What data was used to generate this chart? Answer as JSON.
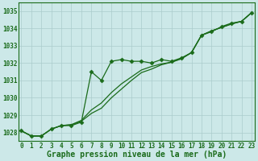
{
  "title": "Graphe pression niveau de la mer (hPa)",
  "background_color": "#cce8e8",
  "grid_color": "#aacccc",
  "line_color": "#1a6b1a",
  "x_ticks": [
    0,
    1,
    2,
    3,
    4,
    5,
    6,
    7,
    8,
    9,
    10,
    11,
    12,
    13,
    14,
    15,
    16,
    17,
    18,
    19,
    20,
    21,
    22,
    23
  ],
  "ylim": [
    1027.5,
    1035.5
  ],
  "yticks": [
    1028,
    1029,
    1030,
    1031,
    1032,
    1033,
    1034,
    1035
  ],
  "series": [
    {
      "y": [
        1028.1,
        1027.8,
        1027.8,
        1028.2,
        1028.4,
        1028.4,
        1028.6,
        1031.5,
        1031.0,
        1032.1,
        1032.2,
        1032.1,
        1032.1,
        1032.0,
        1032.2,
        1032.1,
        1032.3,
        1032.6,
        1033.6,
        1033.8,
        1034.1,
        1034.3,
        1034.4,
        1034.9
      ],
      "marker": "D",
      "markersize": 2.5,
      "linewidth": 0.9,
      "linestyle": "-"
    },
    {
      "y": [
        1028.1,
        1027.8,
        1027.8,
        1028.2,
        1028.4,
        1028.45,
        1028.7,
        1029.3,
        1029.7,
        1030.3,
        1030.8,
        1031.2,
        1031.6,
        1031.8,
        1031.95,
        1032.05,
        1032.25,
        1032.6,
        1033.6,
        1033.85,
        1034.05,
        1034.25,
        1034.4,
        1034.9
      ],
      "marker": null,
      "markersize": 0,
      "linewidth": 0.9,
      "linestyle": "-"
    },
    {
      "y": [
        1028.1,
        1027.8,
        1027.8,
        1028.2,
        1028.4,
        1028.45,
        1028.65,
        1029.1,
        1029.4,
        1030.0,
        1030.5,
        1031.0,
        1031.45,
        1031.65,
        1031.9,
        1032.05,
        1032.25,
        1032.6,
        1033.6,
        1033.85,
        1034.05,
        1034.25,
        1034.4,
        1034.9
      ],
      "marker": null,
      "markersize": 0,
      "linewidth": 0.9,
      "linestyle": "-"
    }
  ],
  "xlim": [
    -0.3,
    23.3
  ],
  "fontsize_title": 7,
  "fontsize_ticks": 5.5
}
